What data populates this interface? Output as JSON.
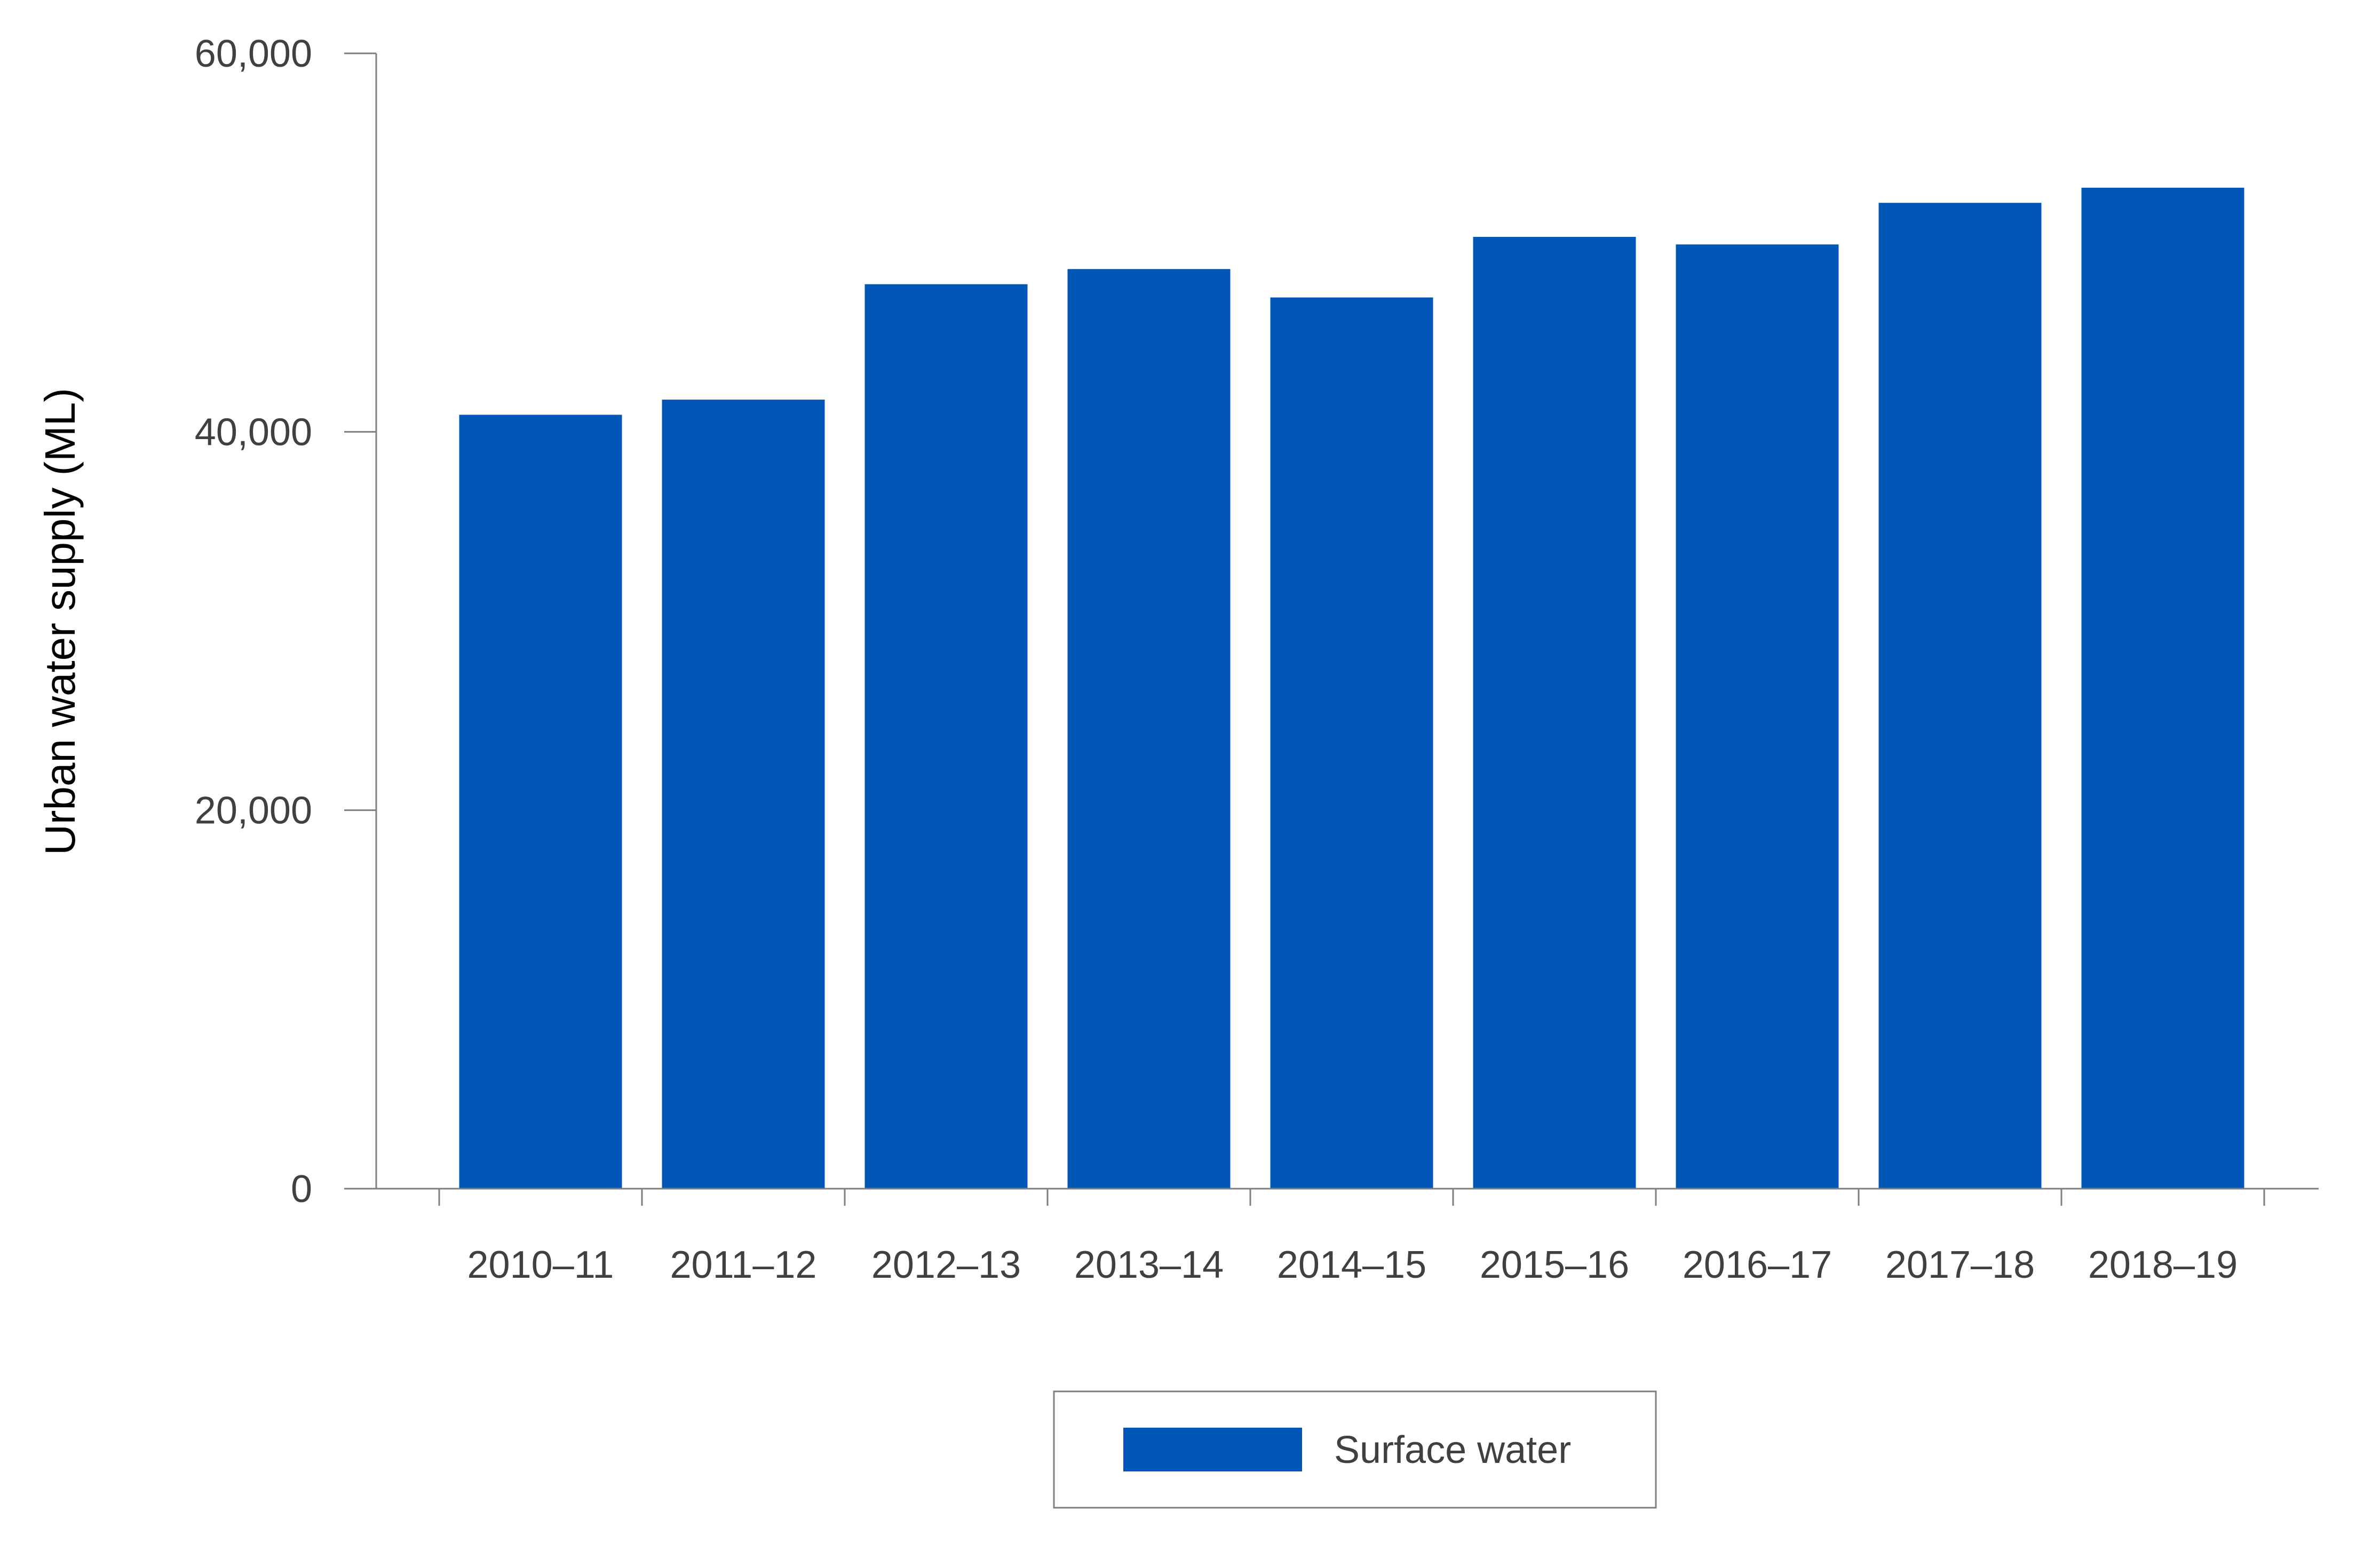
{
  "chart_data": {
    "type": "bar",
    "categories": [
      "2010–11",
      "2011–12",
      "2012–13",
      "2013–14",
      "2014–15",
      "2015–16",
      "2016–17",
      "2017–18",
      "2018–19"
    ],
    "series": [
      {
        "name": "Surface water",
        "color": "#0057b7",
        "values": [
          40900,
          41700,
          47800,
          48600,
          47100,
          50300,
          49900,
          52100,
          52900
        ]
      }
    ],
    "ylabel": "Urban water supply (ML)",
    "xlabel": "",
    "ylim": [
      0,
      60000
    ],
    "yticks": [
      0,
      20000,
      40000,
      60000
    ],
    "ytick_labels": [
      "0",
      "20,000",
      "40,000",
      "60,000"
    ],
    "grid": false,
    "legend_position": "bottom-center"
  }
}
